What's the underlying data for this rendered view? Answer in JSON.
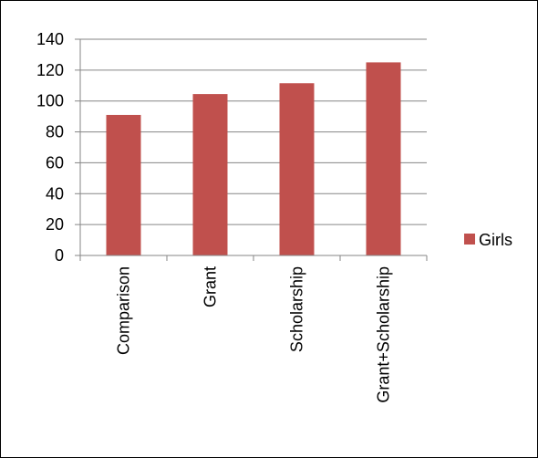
{
  "chart_data": {
    "type": "bar",
    "categories": [
      "Comparison",
      "Grant",
      "Scholarship",
      "Grant+Scholarship"
    ],
    "series": [
      {
        "name": "Girls",
        "values": [
          91,
          104.5,
          111.5,
          125
        ],
        "color": "#c0504d"
      }
    ],
    "ylim": [
      0,
      140
    ],
    "yticks": [
      0,
      20,
      40,
      60,
      80,
      100,
      120,
      140
    ],
    "grid": true,
    "legend": "right",
    "title": "",
    "xlabel": "",
    "ylabel": ""
  }
}
